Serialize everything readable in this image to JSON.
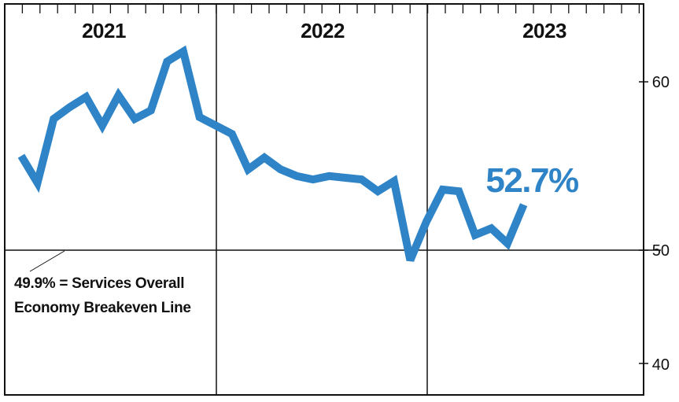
{
  "chart_data": {
    "type": "line",
    "title": "",
    "xlabel": "",
    "ylabel": "",
    "ylim": [
      40,
      60
    ],
    "y_ticks": [
      "60",
      "50",
      "40"
    ],
    "year_labels": [
      "2021",
      "2022",
      "2023"
    ],
    "x": [
      "2021-01",
      "2021-02",
      "2021-03",
      "2021-04",
      "2021-05",
      "2021-06",
      "2021-07",
      "2021-08",
      "2021-09",
      "2021-10",
      "2021-11",
      "2021-12",
      "2022-01",
      "2022-02",
      "2022-03",
      "2022-04",
      "2022-05",
      "2022-06",
      "2022-07",
      "2022-08",
      "2022-09",
      "2022-10",
      "2022-11",
      "2022-12",
      "2023-01",
      "2023-02",
      "2023-03",
      "2023-04",
      "2023-05",
      "2023-06",
      "2023-07",
      "2023-08"
    ],
    "series": [
      {
        "values": [
          55.6,
          54.0,
          57.8,
          58.5,
          59.1,
          57.4,
          59.2,
          57.8,
          58.3,
          61.2,
          61.8,
          57.9,
          57.4,
          56.9,
          54.8,
          55.5,
          54.8,
          54.4,
          54.2,
          54.4,
          54.3,
          54.2,
          53.5,
          54.1,
          49.4,
          51.7,
          53.6,
          53.5,
          50.9,
          51.3,
          50.4,
          52.7
        ]
      }
    ],
    "reference_line": {
      "value": 49.9,
      "label_lines": [
        "49.9% = Services Overall",
        "Economy Breakeven Line"
      ]
    },
    "last_value_label": "52.7%",
    "line_color": "#2f84c8",
    "grid": false,
    "legend": "none"
  }
}
